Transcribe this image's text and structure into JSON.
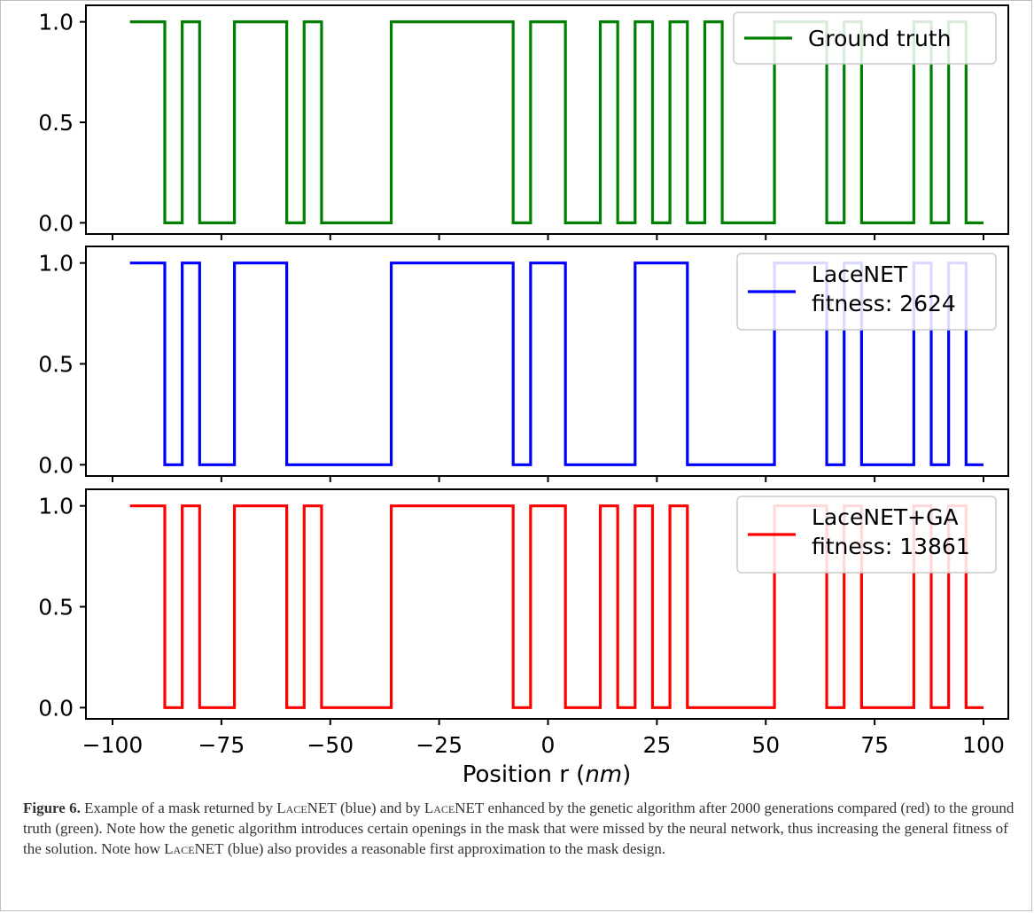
{
  "figure": {
    "xlabel_prefix": "Position r (",
    "xlabel_unit": "nm",
    "xlabel_suffix": ")",
    "caption": {
      "label": "Figure 6.",
      "text_1": " Example of a mask returned by ",
      "sc_1": "LaceNET",
      "text_2": " (blue) and by ",
      "sc_2": "LaceNET",
      "text_3": " enhanced by the genetic algorithm after 2000 generations compared (red) to the ground truth (green). Note how the genetic algorithm introduces certain openings in the mask that were missed by the neural network, thus increasing the general fitness of the solution. Note how ",
      "sc_3": "LaceNET",
      "text_4": " (blue) also provides a reasonable first approximation to the mask design."
    }
  },
  "chart_data": [
    {
      "type": "line",
      "step": "post",
      "color": "#008000",
      "legend_position": "top-right",
      "legend": [
        "Ground truth"
      ],
      "xlim": [
        -100,
        100
      ],
      "ylim": [
        0,
        1
      ],
      "yticks": [
        "0.0",
        "0.5",
        "1.0"
      ],
      "x": [
        -96,
        -88,
        -84,
        -80,
        -72,
        -60,
        -56,
        -52,
        -36,
        -8,
        -4,
        4,
        12,
        16,
        20,
        24,
        28,
        32,
        36,
        40,
        52,
        64,
        68,
        72,
        84,
        88,
        92,
        96,
        100
      ],
      "y": [
        1,
        0,
        1,
        0,
        1,
        0,
        1,
        0,
        1,
        0,
        1,
        0,
        1,
        0,
        1,
        0,
        1,
        0,
        1,
        0,
        1,
        0,
        1,
        0,
        1,
        0,
        1,
        0,
        0
      ]
    },
    {
      "type": "line",
      "step": "post",
      "color": "#0000ff",
      "legend_position": "top-right",
      "legend": [
        "LaceNET",
        "fitness: 2624"
      ],
      "xlim": [
        -100,
        100
      ],
      "ylim": [
        0,
        1
      ],
      "yticks": [
        "0.0",
        "0.5",
        "1.0"
      ],
      "x": [
        -96,
        -88,
        -84,
        -80,
        -72,
        -60,
        -36,
        -8,
        -4,
        4,
        20,
        32,
        52,
        64,
        68,
        72,
        84,
        88,
        92,
        96,
        100
      ],
      "y": [
        1,
        0,
        1,
        0,
        1,
        0,
        1,
        0,
        1,
        0,
        1,
        0,
        1,
        0,
        1,
        0,
        1,
        0,
        1,
        0,
        0
      ]
    },
    {
      "type": "line",
      "step": "post",
      "color": "#ff0000",
      "legend_position": "top-right",
      "legend": [
        "LaceNET+GA",
        "fitness: 13861"
      ],
      "xlim": [
        -100,
        100
      ],
      "ylim": [
        0,
        1
      ],
      "yticks": [
        "0.0",
        "0.5",
        "1.0"
      ],
      "xticks": [
        "−100",
        "−75",
        "−50",
        "−25",
        "0",
        "25",
        "50",
        "75",
        "100"
      ],
      "xtick_values": [
        -100,
        -75,
        -50,
        -25,
        0,
        25,
        50,
        75,
        100
      ],
      "x": [
        -96,
        -88,
        -84,
        -80,
        -72,
        -60,
        -56,
        -52,
        -36,
        -8,
        -4,
        4,
        12,
        16,
        20,
        24,
        28,
        32,
        52,
        64,
        68,
        72,
        84,
        88,
        92,
        96,
        100
      ],
      "y": [
        1,
        0,
        1,
        0,
        1,
        0,
        1,
        0,
        1,
        0,
        1,
        0,
        1,
        0,
        1,
        0,
        1,
        0,
        1,
        0,
        1,
        0,
        1,
        0,
        1,
        0,
        0
      ]
    }
  ]
}
